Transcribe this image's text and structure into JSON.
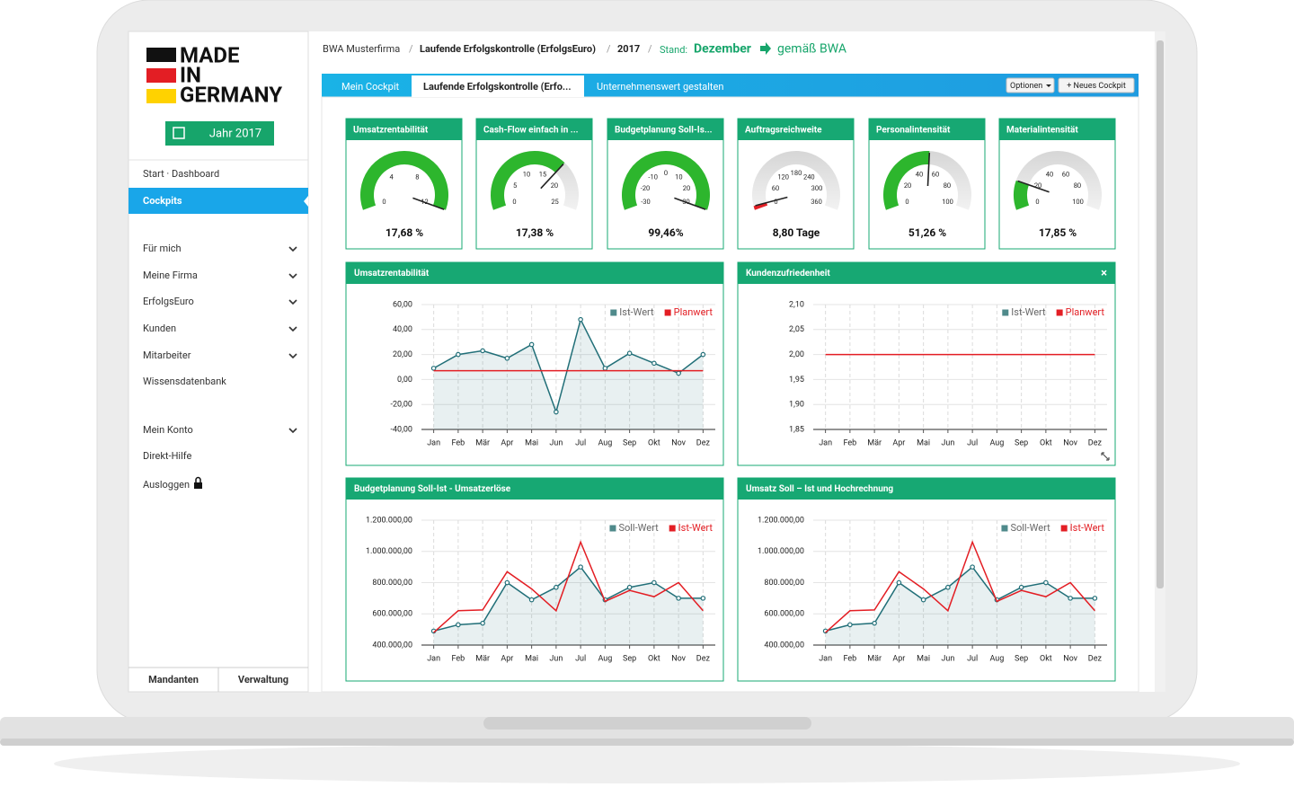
{
  "logo": {
    "lines": [
      "MADE",
      "IN",
      "GERMANY"
    ]
  },
  "year_button": "Jahr 2017",
  "nav": [
    {
      "label": "Start · Dashboard",
      "expandable": false
    },
    {
      "label": "Cockpits",
      "expandable": false,
      "active": true
    },
    {
      "label": "Für mich",
      "expandable": true
    },
    {
      "label": "Meine Firma",
      "expandable": true
    },
    {
      "label": "ErfolgsEuro",
      "expandable": true
    },
    {
      "label": "Kunden",
      "expandable": true
    },
    {
      "label": "Mitarbeiter",
      "expandable": true
    },
    {
      "label": "Wissensdatenbank",
      "expandable": false
    },
    {
      "label": "Mein Konto",
      "expandable": true
    },
    {
      "label": "Direkt-Hilfe",
      "expandable": false
    },
    {
      "label": "Ausloggen",
      "expandable": false,
      "lock": true
    }
  ],
  "footer_tabs": [
    "Mandanten",
    "Verwaltung"
  ],
  "breadcrumb": [
    "BWA Musterfirma",
    "Laufende Erfolgskontrolle (ErfolgsEuro)",
    "2017"
  ],
  "breadcrumb_separator": "/",
  "stand": {
    "label": "Stand:",
    "month": "Dezember",
    "source": "gemäß BWA"
  },
  "tabs": [
    "Mein Cockpit",
    "Laufende Erfolgskontrolle (Erfo...",
    "Unternehmenswert gestalten"
  ],
  "active_tab": 1,
  "buttons": [
    "Optionen",
    "+ Neues Cockpit"
  ],
  "gauges": [
    {
      "title": "Umsatzrentabilität",
      "value": 17.68,
      "value_label": "17,68 %",
      "range": [
        0,
        12
      ],
      "ticks": [
        0,
        4,
        8,
        12
      ],
      "color": "#2db62d"
    },
    {
      "title": "Cash-Flow einfach in ...",
      "value": 17.38,
      "value_label": "17,38 %",
      "range": [
        0,
        25
      ],
      "ticks": [
        0,
        5,
        10,
        15,
        20,
        25
      ],
      "color": "#2db62d"
    },
    {
      "title": "Budgetplanung Soll-Is...",
      "value": 99.46,
      "value_label": "99,46%",
      "range": [
        -30,
        30
      ],
      "ticks": [
        -30,
        -20,
        -10,
        0,
        10,
        20,
        30
      ],
      "color": "#2db62d"
    },
    {
      "title": "Auftragsreichweite",
      "value": 8.8,
      "value_label": "8,80 Tage",
      "range": [
        0,
        360
      ],
      "ticks": [
        0,
        60,
        120,
        180,
        240,
        300,
        360
      ],
      "color": "#e31e24"
    },
    {
      "title": "Personalintensität",
      "value": 51.26,
      "value_label": "51,26 %",
      "range": [
        0,
        100
      ],
      "ticks": [
        0,
        20,
        40,
        60,
        80,
        100
      ],
      "color": "#2db62d"
    },
    {
      "title": "Materialintensität",
      "value": 17.85,
      "value_label": "17,85 %",
      "range": [
        0,
        100
      ],
      "ticks": [
        0,
        20,
        40,
        60,
        80,
        100
      ],
      "color": "#2db62d"
    }
  ],
  "chart_data": [
    {
      "type": "line",
      "title": "Umsatzrentabilität",
      "categories": [
        "Jan",
        "Feb",
        "Mär",
        "Apr",
        "Mai",
        "Jun",
        "Jul",
        "Aug",
        "Sep",
        "Okt",
        "Nov",
        "Dez"
      ],
      "series": [
        {
          "name": "Ist-Wert",
          "color": "#216f78",
          "legend_color": "#4f8a8b",
          "markers": true,
          "values": [
            9,
            20,
            23,
            17,
            28,
            -26,
            48,
            9,
            21,
            13,
            5,
            20
          ]
        },
        {
          "name": "Planwert",
          "color": "#e31e24",
          "legend_color": "#e31e24",
          "markers": false,
          "values": [
            7,
            7,
            7,
            7,
            7,
            7,
            7,
            7,
            7,
            7,
            7,
            7
          ]
        }
      ],
      "ylim": [
        -40,
        60
      ],
      "yticks": [
        {
          "value": -40,
          "label": "-40,00"
        },
        {
          "value": -20,
          "label": "-20,00"
        },
        {
          "value": 0,
          "label": "0,00"
        },
        {
          "value": 20,
          "label": "20,00"
        },
        {
          "value": 40,
          "label": "40,00"
        },
        {
          "value": 60,
          "label": "60,00"
        }
      ],
      "grid": true
    },
    {
      "type": "line",
      "title": "Kundenzufriedenheit",
      "close_label": "×",
      "categories": [
        "Jan",
        "Feb",
        "Mär",
        "Apr",
        "Mai",
        "Jun",
        "Jul",
        "Aug",
        "Sep",
        "Okt",
        "Nov",
        "Dez"
      ],
      "series": [
        {
          "name": "Ist-Wert",
          "color": "#216f78",
          "legend_color": "#4f8a8b",
          "markers": true,
          "values": [
            null,
            null,
            null,
            null,
            null,
            null,
            null,
            null,
            null,
            null,
            null,
            null
          ]
        },
        {
          "name": "Planwert",
          "color": "#e31e24",
          "legend_color": "#e31e24",
          "markers": false,
          "values": [
            2,
            2,
            2,
            2,
            2,
            2,
            2,
            2,
            2,
            2,
            2,
            2
          ]
        }
      ],
      "ylim": [
        1.85,
        2.1
      ],
      "yticks": [
        {
          "value": 1.85,
          "label": "1,85"
        },
        {
          "value": 1.9,
          "label": "1,90"
        },
        {
          "value": 1.95,
          "label": "1,95"
        },
        {
          "value": 2.0,
          "label": "2,00"
        },
        {
          "value": 2.05,
          "label": "2,05"
        },
        {
          "value": 2.1,
          "label": "2,10"
        }
      ],
      "grid": true
    },
    {
      "type": "line",
      "title": "Budgetplanung Soll-Ist - Umsatzerlöse",
      "categories": [
        "Jan",
        "Feb",
        "Mär",
        "Apr",
        "Mai",
        "Jun",
        "Jul",
        "Aug",
        "Sep",
        "Okt",
        "Nov",
        "Dez"
      ],
      "series": [
        {
          "name": "Soll-Wert",
          "color": "#216f78",
          "legend_color": "#4f8a8b",
          "markers": true,
          "values": [
            490000,
            530000,
            540000,
            800000,
            690000,
            770000,
            900000,
            690000,
            770000,
            800000,
            700000,
            700000
          ]
        },
        {
          "name": "Ist-Wert",
          "color": "#e31e24",
          "legend_color": "#e31e24",
          "markers": false,
          "values": [
            480000,
            620000,
            625000,
            870000,
            760000,
            620000,
            1060000,
            680000,
            750000,
            710000,
            800000,
            620000
          ]
        }
      ],
      "ylim": [
        400000,
        1200000
      ],
      "yticks": [
        {
          "value": 400000,
          "label": "400.000,00"
        },
        {
          "value": 600000,
          "label": "600.000,00"
        },
        {
          "value": 800000,
          "label": "800.000,00"
        },
        {
          "value": 1000000,
          "label": "1.000.000,00"
        },
        {
          "value": 1200000,
          "label": "1.200.000,00"
        }
      ],
      "grid": true
    },
    {
      "type": "line",
      "title": "Umsatz Soll – Ist und Hochrechnung",
      "categories": [
        "Jan",
        "Feb",
        "Mär",
        "Apr",
        "Mai",
        "Jun",
        "Jul",
        "Aug",
        "Sep",
        "Okt",
        "Nov",
        "Dez"
      ],
      "series": [
        {
          "name": "Soll-Wert",
          "color": "#216f78",
          "legend_color": "#4f8a8b",
          "markers": true,
          "values": [
            490000,
            530000,
            540000,
            800000,
            690000,
            770000,
            900000,
            690000,
            770000,
            800000,
            700000,
            700000
          ]
        },
        {
          "name": "Ist-Wert",
          "color": "#e31e24",
          "legend_color": "#e31e24",
          "markers": false,
          "values": [
            480000,
            620000,
            625000,
            870000,
            760000,
            620000,
            1060000,
            680000,
            750000,
            710000,
            800000,
            620000
          ]
        }
      ],
      "ylim": [
        400000,
        1200000
      ],
      "yticks": [
        {
          "value": 400000,
          "label": "400.000,00"
        },
        {
          "value": 600000,
          "label": "600.000,00"
        },
        {
          "value": 800000,
          "label": "800.000,00"
        },
        {
          "value": 1000000,
          "label": "1.000.000,00"
        },
        {
          "value": 1200000,
          "label": "1.200.000,00"
        }
      ],
      "grid": true
    }
  ]
}
